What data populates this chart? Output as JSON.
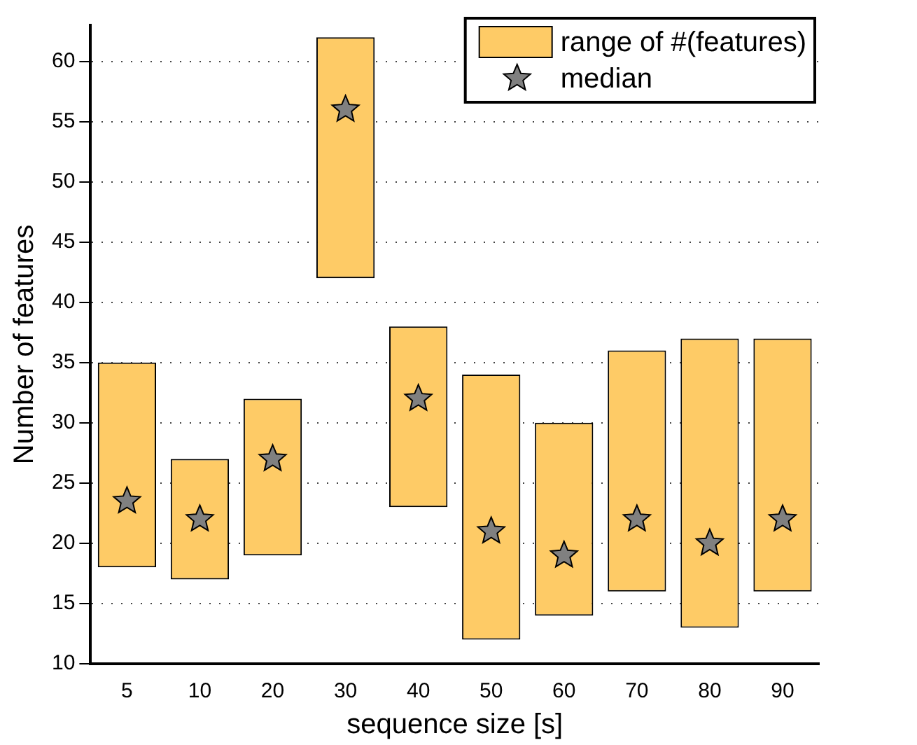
{
  "chart_data": {
    "type": "bar",
    "xlabel": "sequence size [s]",
    "ylabel": "Number of features",
    "categories": [
      "5",
      "10",
      "20",
      "30",
      "40",
      "50",
      "60",
      "70",
      "80",
      "90"
    ],
    "series": [
      {
        "name": "range of #(features)",
        "type": "bar",
        "color": "#fecb66",
        "base": [
          18,
          17,
          19,
          42,
          23,
          12,
          14,
          16,
          13,
          16
        ],
        "values": [
          17,
          10,
          13,
          20,
          15,
          22,
          16,
          20,
          24,
          21
        ]
      },
      {
        "name": "median",
        "type": "scatter",
        "color": "#808080",
        "marker": "star",
        "x": [
          "5",
          "10",
          "20",
          "30",
          "40",
          "50",
          "60",
          "70",
          "80",
          "90"
        ],
        "values": [
          23.5,
          22,
          27,
          56,
          32,
          21,
          19,
          22,
          20,
          22
        ]
      }
    ],
    "ylim": [
      10,
      63
    ],
    "yticks": [
      10,
      15,
      20,
      25,
      30,
      35,
      40,
      45,
      50,
      55,
      60
    ],
    "grid": "y",
    "legend": "top right"
  }
}
